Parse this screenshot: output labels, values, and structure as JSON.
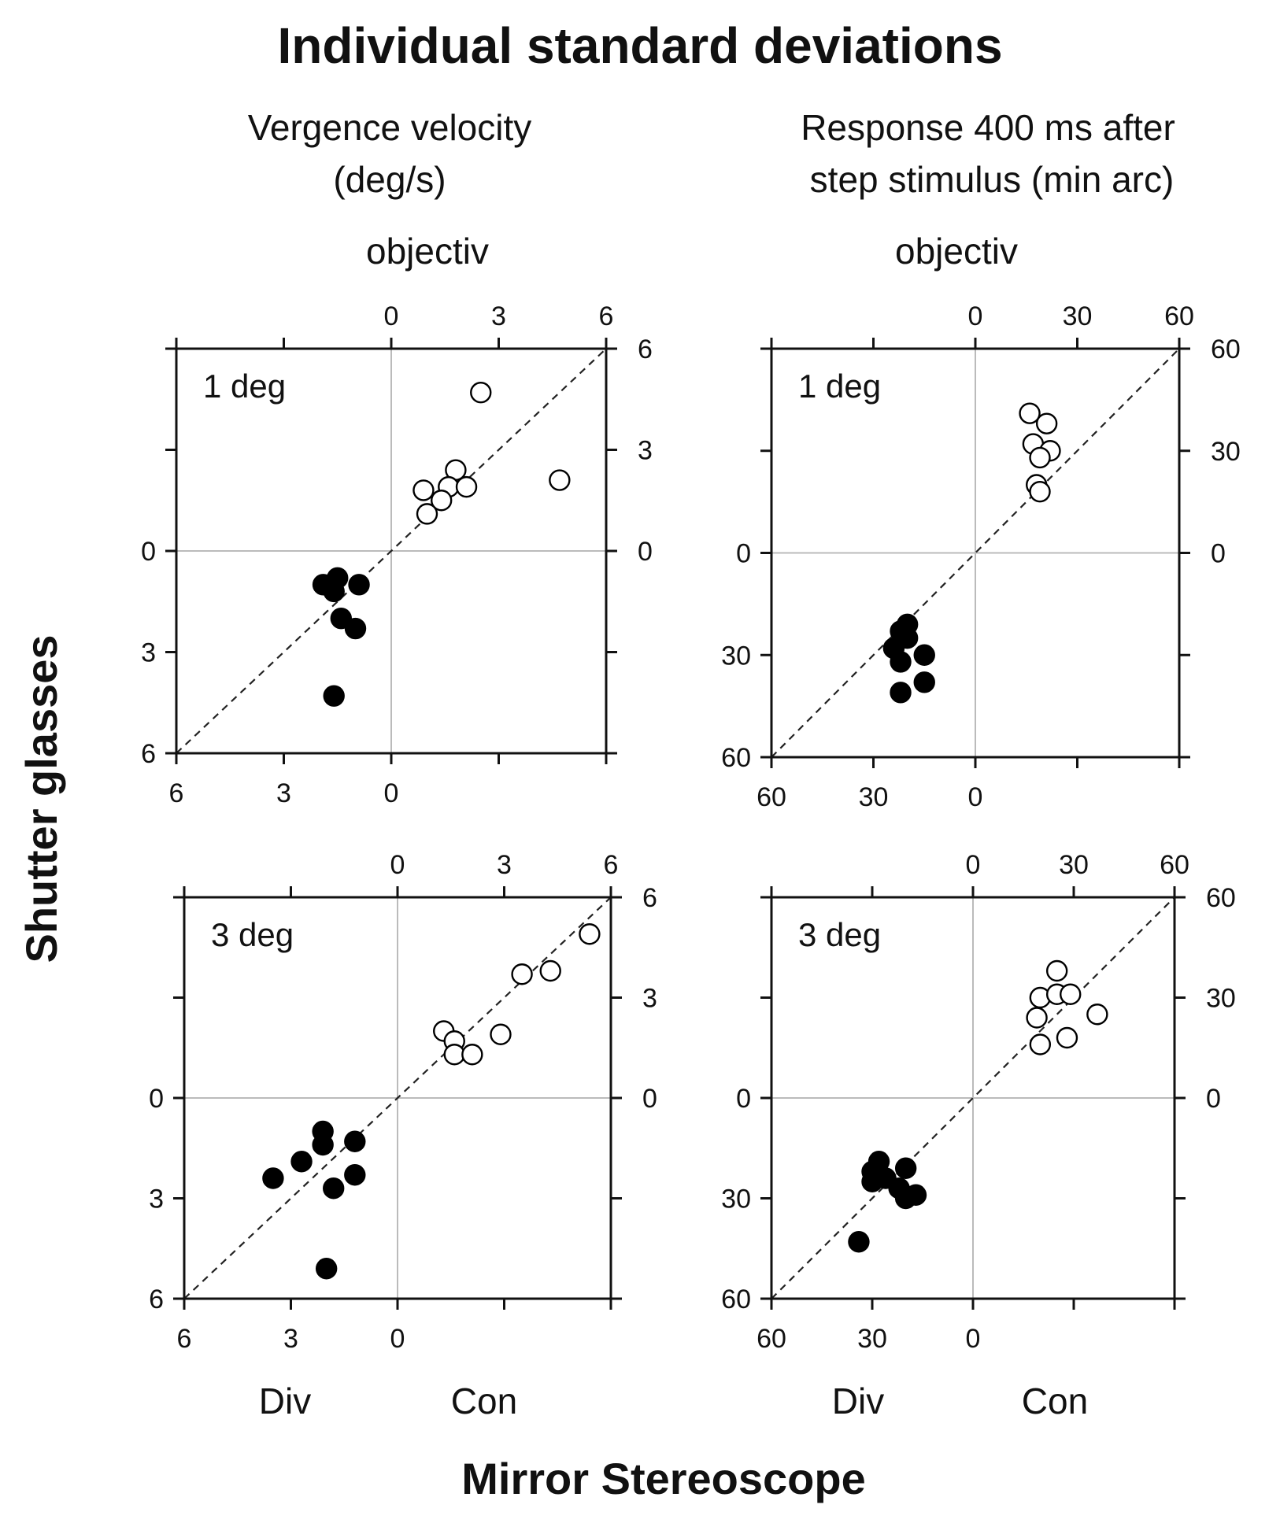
{
  "title": "Individual standard deviations",
  "ylabel": "Shutter glasses",
  "xlabel": "Mirror Stereoscope",
  "columns": [
    {
      "title_line1": "Vergence velocity",
      "title_line2": "(deg/s)",
      "subtitle": "objectiv"
    },
    {
      "title_line1": "Response 400 ms after",
      "title_line2": "step stimulus (min arc)",
      "subtitle": "objectiv"
    }
  ],
  "axis_words": {
    "left": "Div",
    "right": "Con"
  },
  "chart_data": [
    {
      "type": "scatter",
      "panel": "1 deg",
      "quantity": "Vergence velocity (deg/s)",
      "xlim": [
        -6,
        6
      ],
      "ylim": [
        -6,
        6
      ],
      "ticks": [
        6,
        3,
        0,
        3,
        6
      ],
      "diagonal": "dashed y=x",
      "series": [
        {
          "name": "Convergence (open)",
          "filled": false,
          "points": [
            [
              2.5,
              4.7
            ],
            [
              4.7,
              2.1
            ],
            [
              1.8,
              2.4
            ],
            [
              1.6,
              1.9
            ],
            [
              2.1,
              1.9
            ],
            [
              0.9,
              1.8
            ],
            [
              1.4,
              1.5
            ],
            [
              1.0,
              1.1
            ]
          ]
        },
        {
          "name": "Divergence (filled)",
          "filled": true,
          "points": [
            [
              -1.9,
              -1.0
            ],
            [
              -1.7,
              -1.0
            ],
            [
              -1.5,
              -0.8
            ],
            [
              -1.6,
              -1.2
            ],
            [
              -0.9,
              -1.0
            ],
            [
              -1.4,
              -2.0
            ],
            [
              -1.0,
              -2.3
            ],
            [
              -1.6,
              -4.3
            ]
          ]
        }
      ]
    },
    {
      "type": "scatter",
      "panel": "1 deg",
      "quantity": "Response 400 ms after step stimulus (min arc)",
      "xlim": [
        -60,
        60
      ],
      "ylim": [
        -60,
        60
      ],
      "ticks": [
        60,
        30,
        0,
        30,
        60
      ],
      "diagonal": "dashed y=x",
      "series": [
        {
          "name": "Convergence (open)",
          "filled": false,
          "points": [
            [
              16,
              41
            ],
            [
              21,
              38
            ],
            [
              17,
              32
            ],
            [
              22,
              30
            ],
            [
              19,
              28
            ],
            [
              18,
              20
            ],
            [
              19,
              18
            ]
          ]
        },
        {
          "name": "Divergence (filled)",
          "filled": true,
          "points": [
            [
              -20,
              -21
            ],
            [
              -22,
              -23
            ],
            [
              -24,
              -28
            ],
            [
              -22,
              -32
            ],
            [
              -15,
              -30
            ],
            [
              -15,
              -38
            ],
            [
              -22,
              -41
            ],
            [
              -20,
              -25
            ]
          ]
        }
      ]
    },
    {
      "type": "scatter",
      "panel": "3 deg",
      "quantity": "Vergence velocity (deg/s)",
      "xlim": [
        -6,
        6
      ],
      "ylim": [
        -6,
        6
      ],
      "ticks": [
        6,
        3,
        0,
        3,
        6
      ],
      "diagonal": "dashed y=x",
      "series": [
        {
          "name": "Convergence (open)",
          "filled": false,
          "points": [
            [
              5.4,
              4.9
            ],
            [
              4.3,
              3.8
            ],
            [
              3.5,
              3.7
            ],
            [
              2.9,
              1.9
            ],
            [
              1.3,
              2.0
            ],
            [
              1.6,
              1.7
            ],
            [
              1.6,
              1.3
            ],
            [
              2.1,
              1.3
            ]
          ]
        },
        {
          "name": "Divergence (filled)",
          "filled": true,
          "points": [
            [
              -2.1,
              -1.0
            ],
            [
              -2.1,
              -1.4
            ],
            [
              -2.7,
              -1.9
            ],
            [
              -3.5,
              -2.4
            ],
            [
              -1.2,
              -1.3
            ],
            [
              -1.2,
              -2.3
            ],
            [
              -1.8,
              -2.7
            ],
            [
              -2.0,
              -5.1
            ]
          ]
        }
      ]
    },
    {
      "type": "scatter",
      "panel": "3 deg",
      "quantity": "Response 400 ms after step stimulus (min arc)",
      "xlim": [
        -60,
        60
      ],
      "ylim": [
        -60,
        60
      ],
      "ticks": [
        60,
        30,
        0,
        30,
        60
      ],
      "diagonal": "dashed y=x",
      "series": [
        {
          "name": "Convergence (open)",
          "filled": false,
          "points": [
            [
              25,
              38
            ],
            [
              20,
              30
            ],
            [
              25,
              31
            ],
            [
              29,
              31
            ],
            [
              19,
              24
            ],
            [
              37,
              25
            ],
            [
              28,
              18
            ],
            [
              20,
              16
            ]
          ]
        },
        {
          "name": "Divergence (filled)",
          "filled": true,
          "points": [
            [
              -28,
              -19
            ],
            [
              -30,
              -22
            ],
            [
              -30,
              -25
            ],
            [
              -26,
              -24
            ],
            [
              -20,
              -21
            ],
            [
              -22,
              -27
            ],
            [
              -20,
              -30
            ],
            [
              -17,
              -29
            ],
            [
              -34,
              -43
            ]
          ]
        }
      ]
    }
  ]
}
